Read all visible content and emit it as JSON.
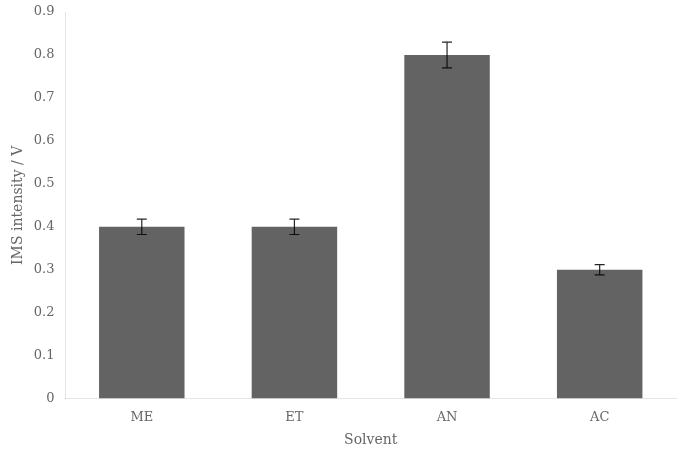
{
  "chart_data": {
    "type": "bar",
    "categories": [
      "ME",
      "ET",
      "AN",
      "AC"
    ],
    "values": [
      0.4,
      0.4,
      0.8,
      0.3
    ],
    "errors": [
      0.018,
      0.018,
      0.03,
      0.012
    ],
    "color": "#636363",
    "xlabel": "Solvent",
    "ylabel": "IMS intensity / V",
    "ylim": [
      0,
      0.9
    ],
    "yticks": [
      0,
      0.1,
      0.2,
      0.3,
      0.4,
      0.5,
      0.6,
      0.7,
      0.8,
      0.9
    ],
    "grid": false
  }
}
